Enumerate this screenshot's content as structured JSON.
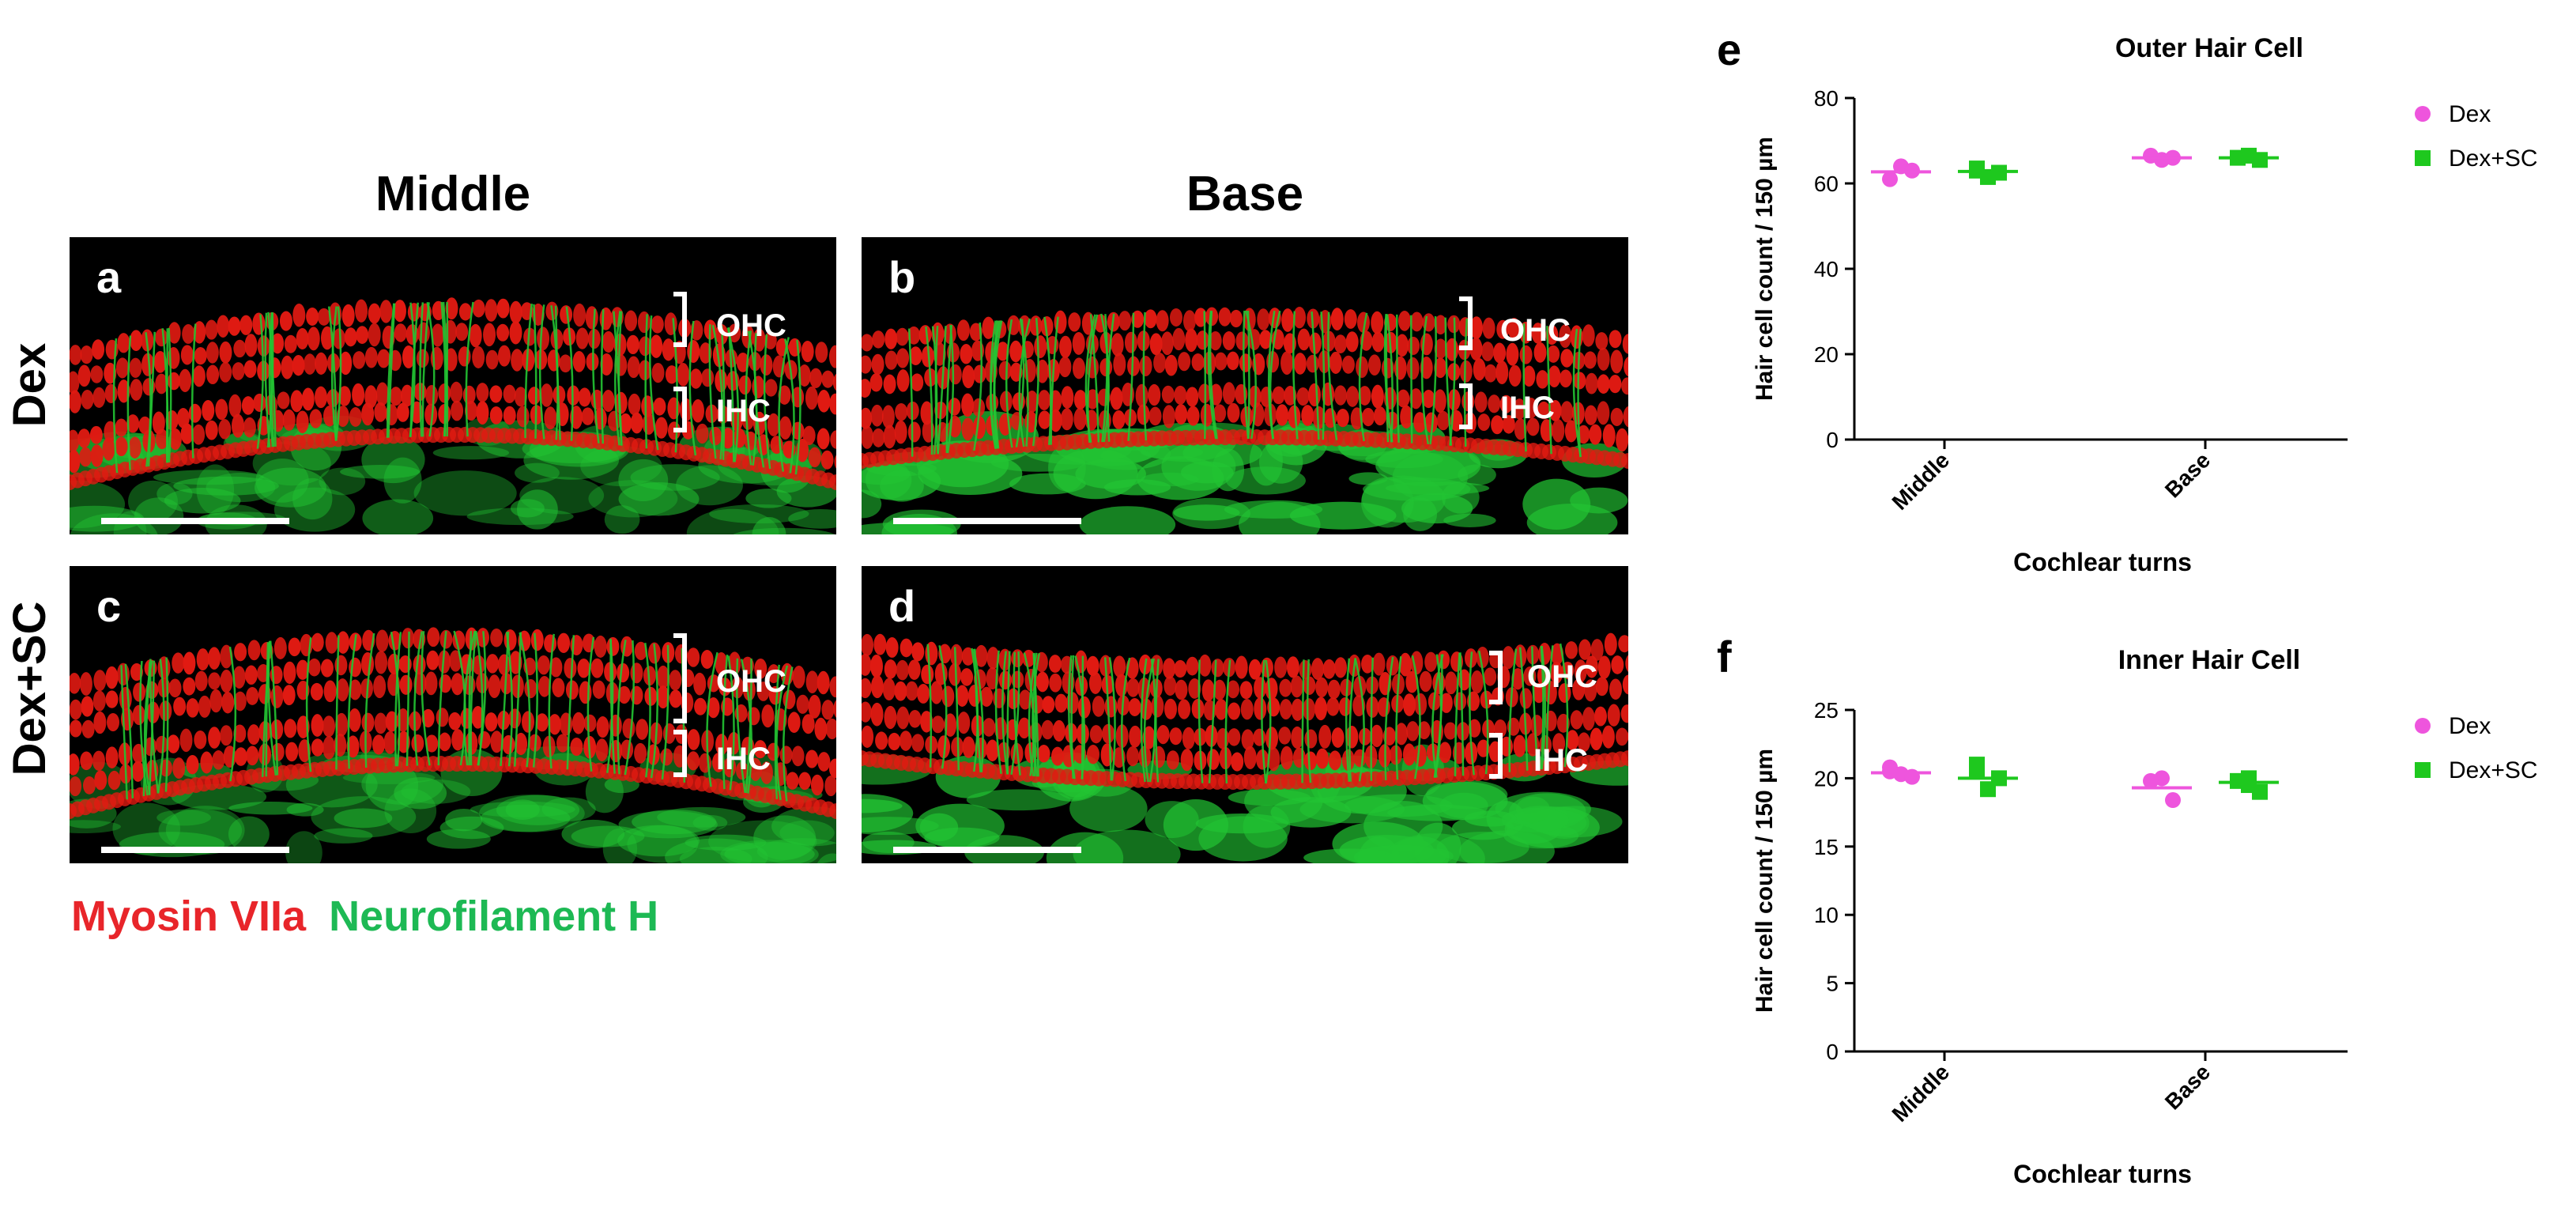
{
  "micrographs": {
    "column_titles": [
      "Middle",
      "Base"
    ],
    "row_labels": [
      "Dex",
      "Dex+SC"
    ],
    "panels": [
      {
        "letter": "a"
      },
      {
        "letter": "b"
      },
      {
        "letter": "c"
      },
      {
        "letter": "d"
      }
    ],
    "bracket_labels": {
      "outer": "OHC",
      "inner": "IHC"
    },
    "stain_legend": {
      "red_label": "Myosin VIIa",
      "green_label": "Neurofilament  H",
      "red_color": "#e8252a",
      "green_color": "#1db954"
    }
  },
  "colors": {
    "dex": "#ee55dd",
    "dex_sc": "#1ec81e",
    "tissue_red": "#e11a12",
    "tissue_green": "#22c433"
  },
  "chart_data": [
    {
      "panel_letter": "e",
      "type": "scatter",
      "title": "Outer Hair Cell",
      "xlabel": "Cochlear turns",
      "ylabel": "Hair cell count / 150 µm",
      "categories": [
        "Middle",
        "Base"
      ],
      "ylim": [
        0,
        80
      ],
      "yticks": [
        0,
        20,
        40,
        60,
        80
      ],
      "legend_position": "top-right",
      "series": [
        {
          "name": "Dex",
          "marker": "circle",
          "color": "#ee55dd",
          "points": [
            [
              0,
              61
            ],
            [
              0,
              64
            ],
            [
              0,
              63
            ],
            [
              1,
              66.5
            ],
            [
              1,
              65.5
            ],
            [
              1,
              66
            ]
          ],
          "means": [
            62.7,
            66
          ]
        },
        {
          "name": "Dex+SC",
          "marker": "square",
          "color": "#1ec81e",
          "points": [
            [
              0,
              63.5
            ],
            [
              0,
              61.5
            ],
            [
              0,
              62.5
            ],
            [
              0,
              63
            ],
            [
              1,
              66.5
            ],
            [
              1,
              65.5
            ],
            [
              1,
              66
            ]
          ],
          "means": [
            62.8,
            66
          ]
        }
      ]
    },
    {
      "panel_letter": "f",
      "type": "scatter",
      "title": "Inner Hair Cell",
      "xlabel": "Cochlear turns",
      "ylabel": "Hair cell count / 150 µm",
      "categories": [
        "Middle",
        "Base"
      ],
      "ylim": [
        0,
        25
      ],
      "yticks": [
        0,
        5,
        10,
        15,
        20,
        25
      ],
      "legend_position": "top-right",
      "series": [
        {
          "name": "Dex",
          "marker": "circle",
          "color": "#ee55dd",
          "points": [
            [
              0,
              20.8
            ],
            [
              0,
              20.3
            ],
            [
              0,
              20.1
            ],
            [
              0,
              20.5
            ],
            [
              1,
              20
            ],
            [
              1,
              18.4
            ],
            [
              1,
              19.8
            ]
          ],
          "means": [
            20.4,
            19.3
          ]
        },
        {
          "name": "Dex+SC",
          "marker": "square",
          "color": "#1ec81e",
          "points": [
            [
              0,
              21
            ],
            [
              0,
              19.2
            ],
            [
              0,
              20
            ],
            [
              0,
              20.5
            ],
            [
              1,
              20
            ],
            [
              1,
              19
            ],
            [
              1,
              19.8
            ],
            [
              1,
              19.5
            ]
          ],
          "means": [
            20,
            19.7
          ]
        }
      ]
    }
  ]
}
